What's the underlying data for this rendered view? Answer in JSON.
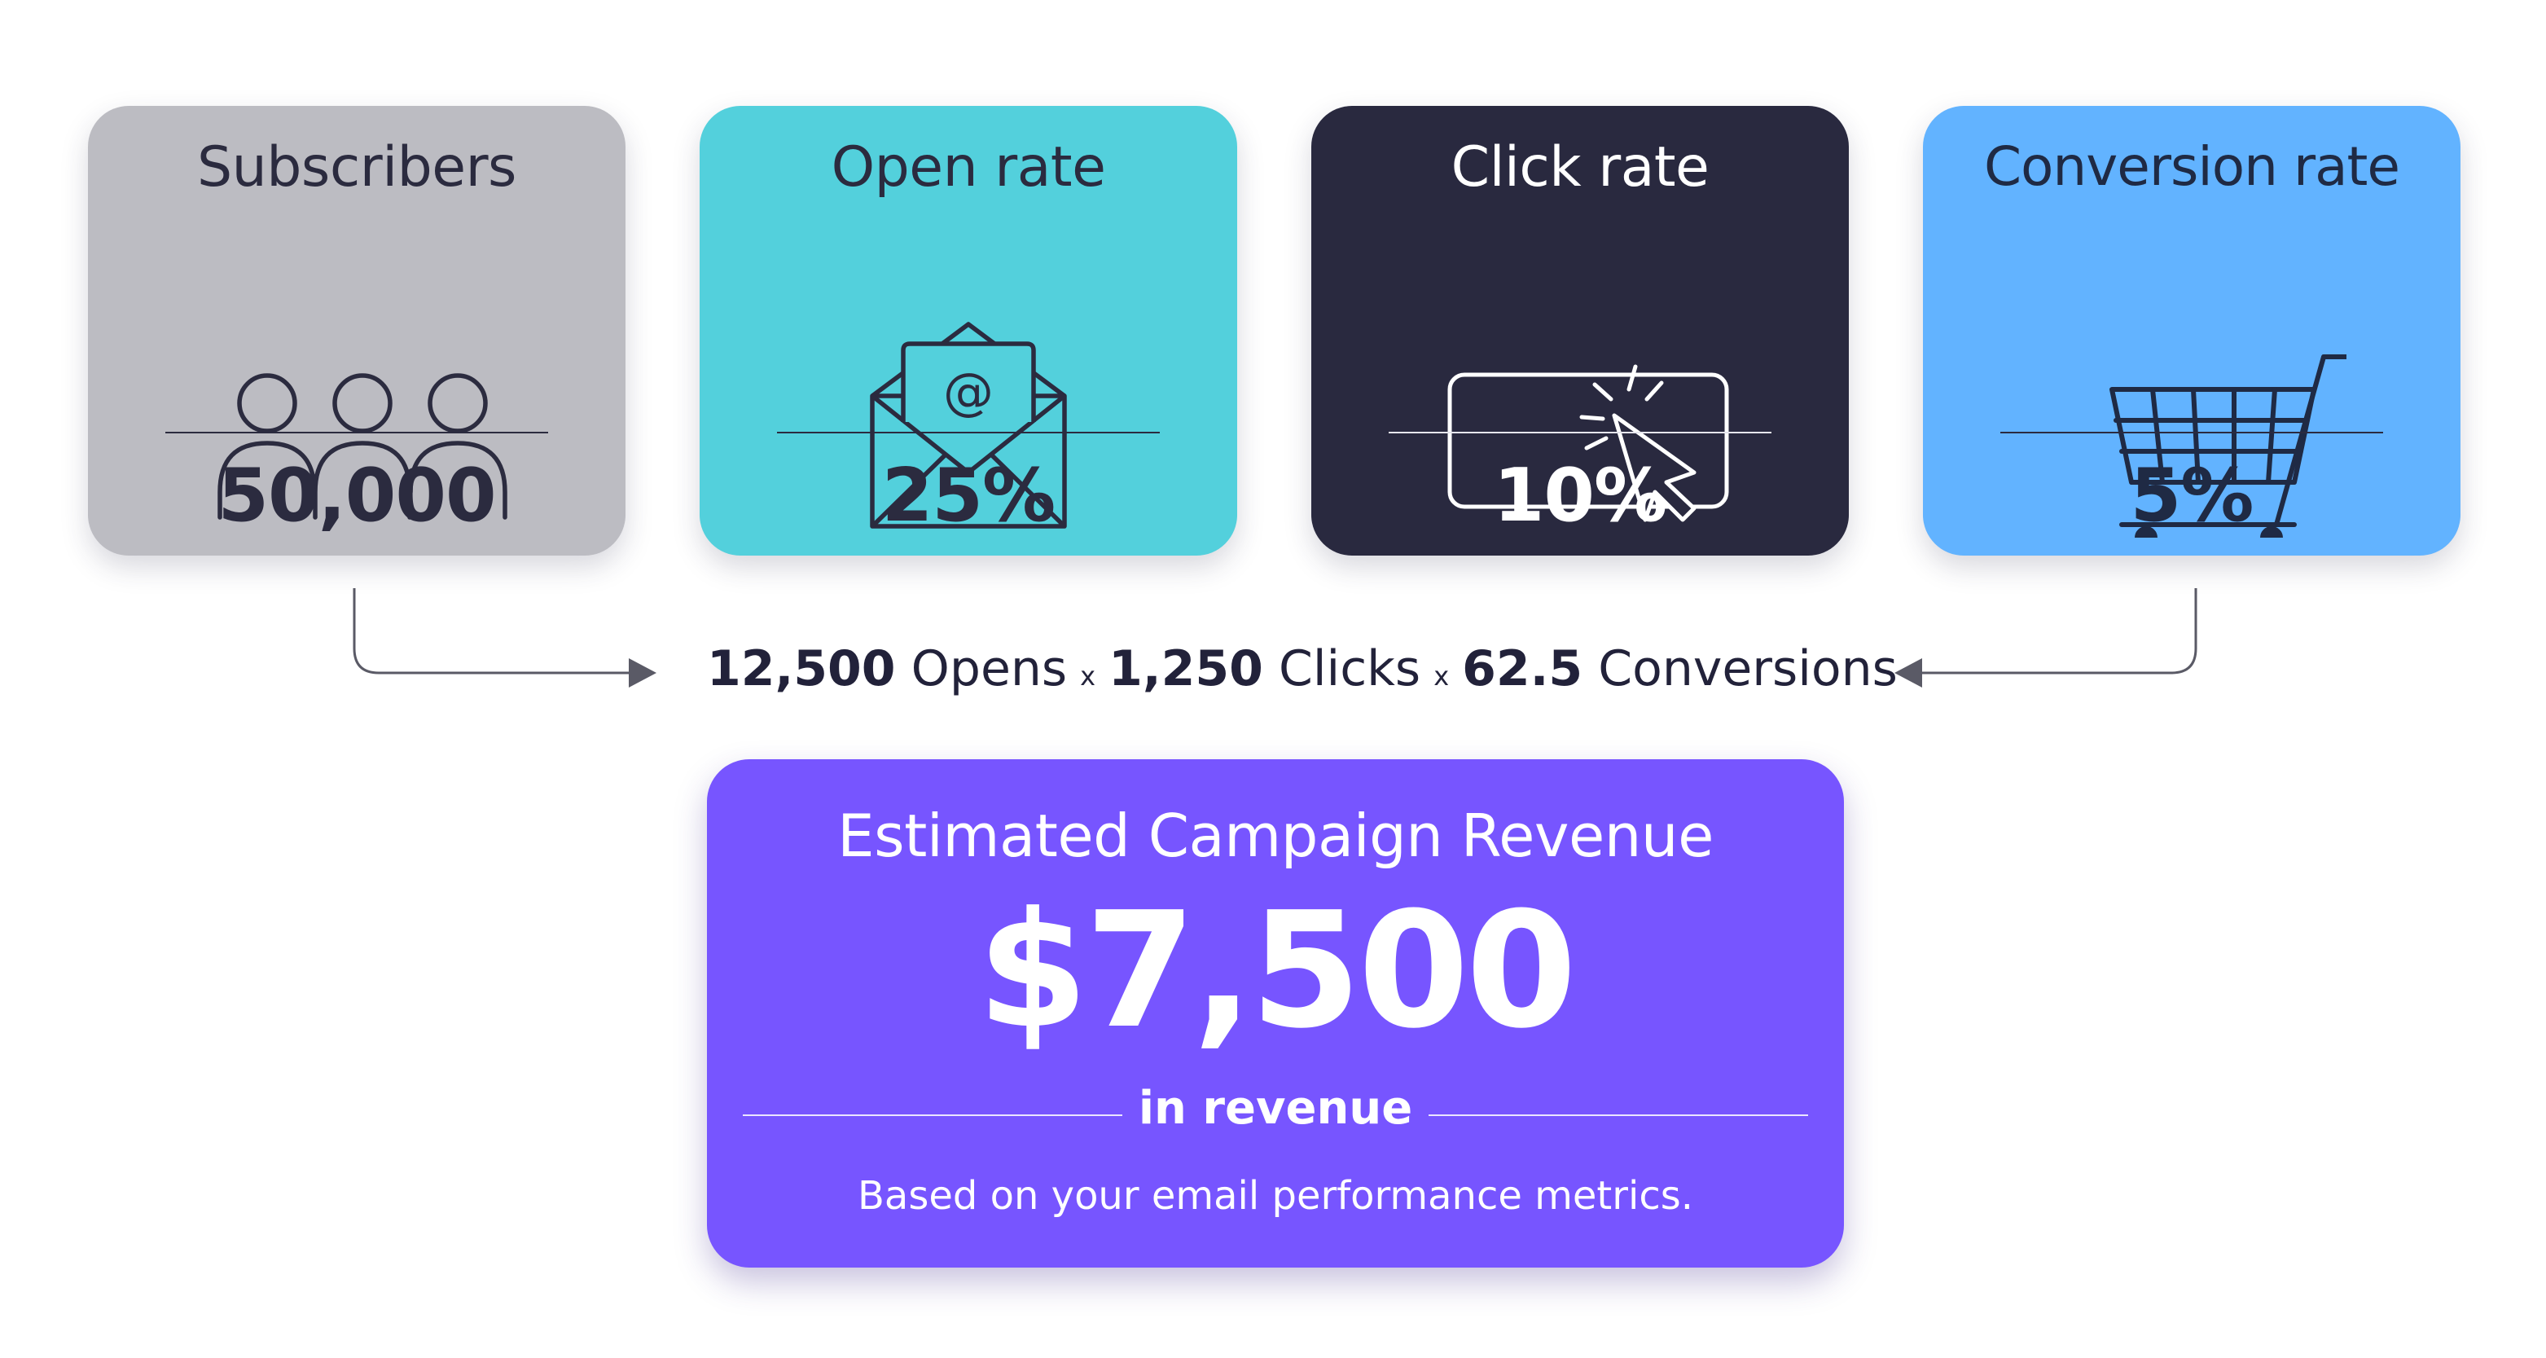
{
  "cards": [
    {
      "title": "Subscribers",
      "value": "50,000",
      "icon": "people-icon",
      "color": "#bcbcc2"
    },
    {
      "title": "Open rate",
      "value": "25%",
      "icon": "email-open-icon",
      "color": "#53d0dc"
    },
    {
      "title": "Click rate",
      "value": "10%",
      "icon": "cursor-click-icon",
      "color": "#29293f"
    },
    {
      "title": "Conversion rate",
      "value": "5%",
      "icon": "shopping-cart-icon",
      "color": "#62b3ff"
    }
  ],
  "email_icon_symbol": "@",
  "formula": {
    "opens_value": "12,500",
    "opens_label": "Opens",
    "times_1": "x",
    "clicks_value": "1,250",
    "clicks_label": "Clicks",
    "times_2": "x",
    "conversions_value": "62.5",
    "conversions_label": "Conversions"
  },
  "revenue": {
    "title": "Estimated Campaign Revenue",
    "amount": "$7,500",
    "subtitle": "in revenue",
    "note": "Based on your email performance metrics.",
    "color": "#7755ff"
  }
}
